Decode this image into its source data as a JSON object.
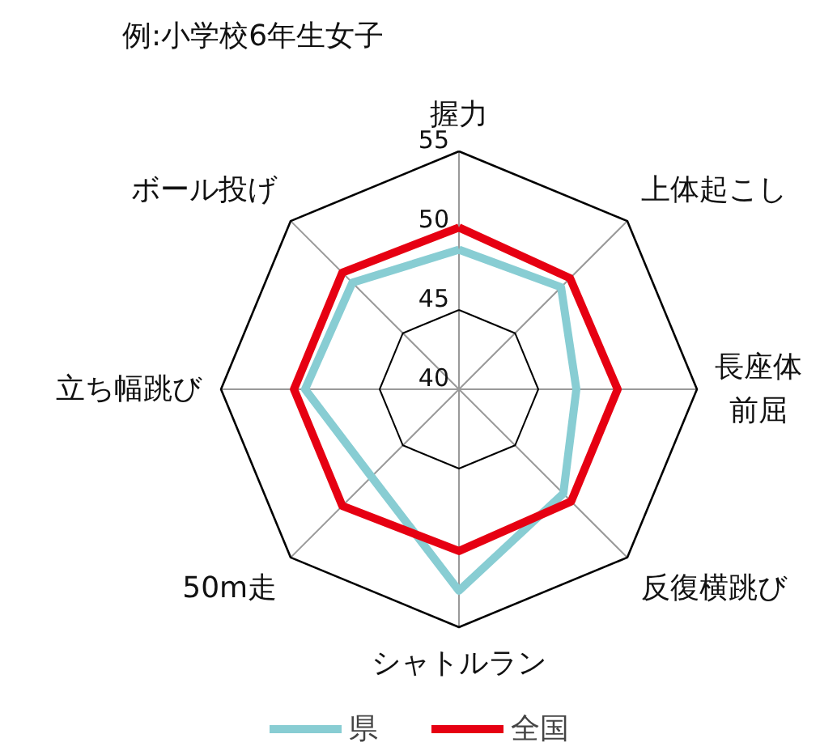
{
  "chart_data": {
    "type": "radar",
    "title": "例:小学校6年生女子",
    "categories": [
      "握力",
      "上体起こし",
      "長座体前屈",
      "反復横跳び",
      "シャトルラン",
      "50m走",
      "立ち幅跳び",
      "ボール投げ"
    ],
    "series": [
      {
        "name": "県",
        "color": "#88cdd3",
        "values": [
          48.8,
          49.1,
          47.4,
          49.3,
          52.7,
          47.8,
          49.7,
          49.5
        ]
      },
      {
        "name": "全国",
        "color": "#e60012",
        "values": [
          50.2,
          49.9,
          50.0,
          50.0,
          50.2,
          50.4,
          50.4,
          50.4
        ]
      }
    ],
    "ylim": [
      40,
      55
    ],
    "yticks": [
      40,
      45,
      50,
      55
    ],
    "legend": "bottom"
  }
}
